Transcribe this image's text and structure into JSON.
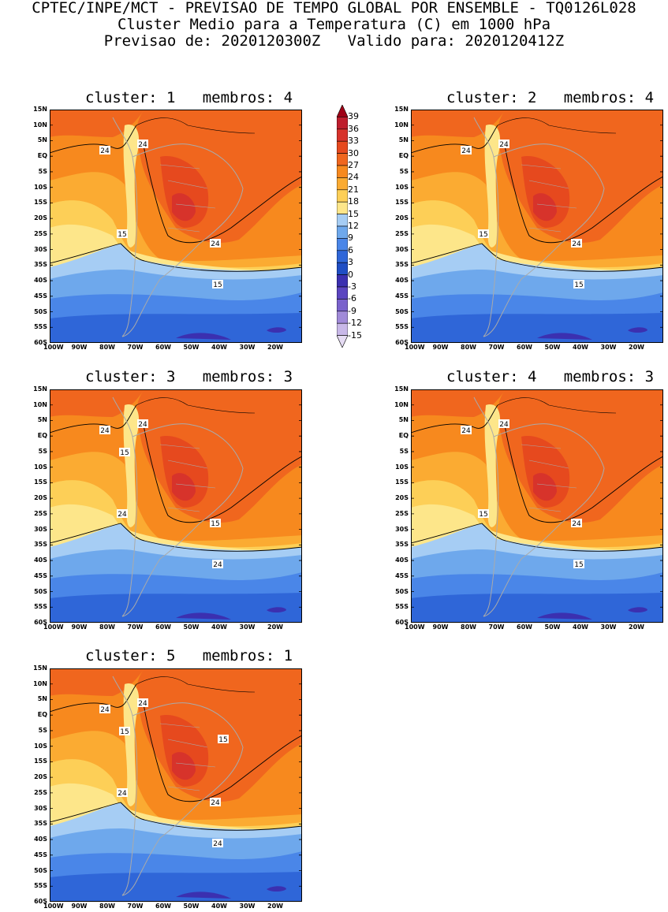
{
  "header": {
    "line1": "CPTEC/INPE/MCT - PREVISAO DE TEMPO GLOBAL POR ENSEMBLE - TQ0126L028",
    "line2": "Cluster Medio para a Temperatura (C) em 1000 hPa",
    "line3": "Previsao de: 2020120300Z   Valido para: 2020120412Z"
  },
  "lat_labels": [
    "15N",
    "10N",
    "5N",
    "EQ",
    "5S",
    "10S",
    "15S",
    "20S",
    "25S",
    "30S",
    "35S",
    "40S",
    "45S",
    "50S",
    "55S",
    "60S"
  ],
  "lon_labels": [
    "100W",
    "90W",
    "80W",
    "70W",
    "60W",
    "50W",
    "40W",
    "30W",
    "20W"
  ],
  "colorbar": {
    "levels": [
      "39",
      "36",
      "33",
      "30",
      "27",
      "24",
      "21",
      "18",
      "15",
      "12",
      "9",
      "6",
      "3",
      "0",
      "-3",
      "-6",
      "-9",
      "-12",
      "-15"
    ],
    "colors": [
      "#9e0016",
      "#be1e2d",
      "#d7332b",
      "#e6491e",
      "#f0661e",
      "#f7891e",
      "#fbab32",
      "#fdcf57",
      "#fde68a",
      "#a6cdf4",
      "#6ea8ec",
      "#4a86e8",
      "#2f66d8",
      "#1f4ec4",
      "#3b30b0",
      "#5b45c0",
      "#7a62cc",
      "#a08ad8",
      "#c8b8e8",
      "#e6dcf4"
    ]
  },
  "panels": [
    {
      "title": "cluster: 1   membros: 4",
      "labels": [
        "24",
        "24",
        "15",
        "24",
        "15"
      ]
    },
    {
      "title": "cluster: 2   membros: 4",
      "labels": [
        "24",
        "24",
        "15",
        "24",
        "15"
      ]
    },
    {
      "title": "cluster: 3   membros: 3",
      "labels": [
        "24",
        "24",
        "24",
        "15",
        "24",
        "15"
      ]
    },
    {
      "title": "cluster: 4   membros: 3",
      "labels": [
        "24",
        "24",
        "15",
        "24",
        "15"
      ]
    },
    {
      "title": "cluster: 5   membros: 1",
      "labels": [
        "24",
        "24",
        "24",
        "24",
        "24",
        "15",
        "15"
      ]
    }
  ]
}
